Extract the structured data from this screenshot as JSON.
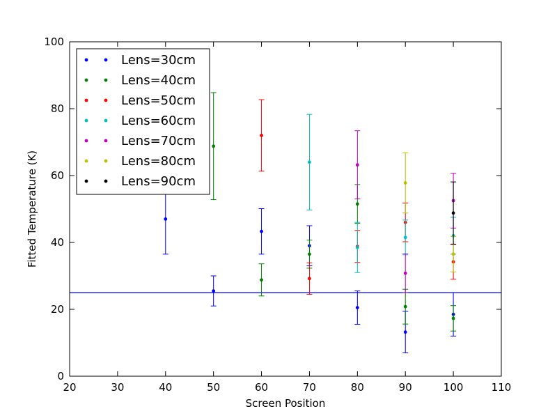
{
  "chart_data": {
    "type": "scatter",
    "title": "",
    "xlabel": "Screen Position",
    "ylabel": "Fitted Temperature (K)",
    "xlim": [
      20,
      110
    ],
    "ylim": [
      0,
      100
    ],
    "xticks": [
      "20",
      "30",
      "40",
      "50",
      "60",
      "70",
      "80",
      "90",
      "100",
      "110"
    ],
    "yticks": [
      "0",
      "20",
      "40",
      "60",
      "80",
      "100"
    ],
    "grid": false,
    "legend_position": "top-left",
    "reference_line": {
      "y": 25,
      "color": "#0000ff"
    },
    "series": [
      {
        "name": "Lens=30cm",
        "color": "#0000ff",
        "points": [
          {
            "x": 40,
            "y": 47,
            "err": 10.5
          },
          {
            "x": 50,
            "y": 25.5,
            "err": 4.5
          },
          {
            "x": 60,
            "y": 43.3,
            "err": 6.8
          },
          {
            "x": 70,
            "y": 39,
            "err": 6
          },
          {
            "x": 80,
            "y": 20.5,
            "err": 5
          },
          {
            "x": 90,
            "y": 13.2,
            "err": 6.2
          },
          {
            "x": 100,
            "y": 18.5,
            "err": 6.5
          }
        ]
      },
      {
        "name": "Lens=40cm",
        "color": "#008000",
        "points": [
          {
            "x": 50,
            "y": 68.8,
            "err": 16
          },
          {
            "x": 60,
            "y": 28.8,
            "err": 4.8
          },
          {
            "x": 70,
            "y": 36.5,
            "err": 4.2
          },
          {
            "x": 80,
            "y": 51.5,
            "err": 5.8
          },
          {
            "x": 90,
            "y": 20.8,
            "err": 5.2
          },
          {
            "x": 100,
            "y": 17.3,
            "err": 3.8
          }
        ]
      },
      {
        "name": "Lens=50cm",
        "color": "#ff0000",
        "points": [
          {
            "x": 60,
            "y": 72,
            "err": 10.7
          },
          {
            "x": 70,
            "y": 29.2,
            "err": 4.7
          },
          {
            "x": 80,
            "y": 38.8,
            "err": 4.8
          },
          {
            "x": 90,
            "y": 46,
            "err": 5.8
          },
          {
            "x": 100,
            "y": 34.2,
            "err": 5.2
          }
        ]
      },
      {
        "name": "Lens=60cm",
        "color": "#00bfbf",
        "points": [
          {
            "x": 70,
            "y": 64,
            "err": 14.3
          },
          {
            "x": 80,
            "y": 38.5,
            "err": 7.5
          },
          {
            "x": 90,
            "y": 41.5,
            "err": 5.2
          },
          {
            "x": 100,
            "y": 42,
            "err": 5.5
          }
        ]
      },
      {
        "name": "Lens=70cm",
        "color": "#bf00bf",
        "points": [
          {
            "x": 80,
            "y": 63.2,
            "err": 10.2
          },
          {
            "x": 90,
            "y": 30.8,
            "err": 5.8
          },
          {
            "x": 100,
            "y": 52.5,
            "err": 8.2
          }
        ]
      },
      {
        "name": "Lens=80cm",
        "color": "#bfbf00",
        "points": [
          {
            "x": 90,
            "y": 57.8,
            "err": 9
          },
          {
            "x": 100,
            "y": 36.5,
            "err": 5.3
          }
        ]
      },
      {
        "name": "Lens=90cm",
        "color": "#000000",
        "points": [
          {
            "x": 100,
            "y": 48.8,
            "err": 9.3
          }
        ]
      }
    ]
  }
}
